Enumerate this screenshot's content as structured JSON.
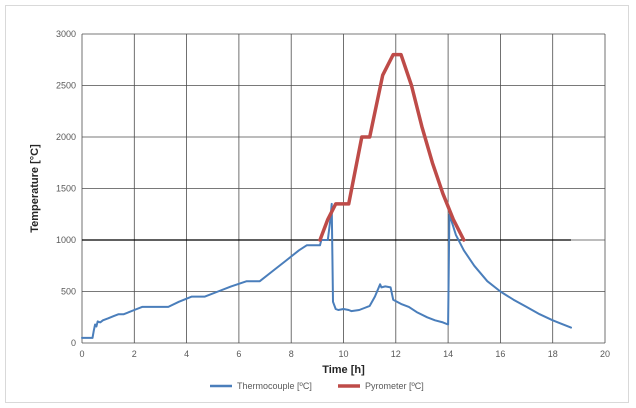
{
  "chart_data": {
    "type": "line",
    "title": "",
    "xlabel": "Time [h]",
    "ylabel": "Temperature  [°C]",
    "xlim": [
      0,
      20
    ],
    "ylim": [
      0,
      3000
    ],
    "xticks": [
      "0",
      "2",
      "4",
      "6",
      "8",
      "10",
      "12",
      "14",
      "16",
      "18",
      "20"
    ],
    "yticks": [
      "0",
      "500",
      "1000",
      "1500",
      "2000",
      "2500",
      "3000"
    ],
    "grid": true,
    "legend_position": "bottom",
    "reference_line": {
      "y": 1000,
      "x_range": [
        0,
        18.7
      ],
      "color": "#000000"
    },
    "series": [
      {
        "name": "Thermocouple [ºC]",
        "color": "#4a7ebb",
        "points": [
          [
            0,
            50
          ],
          [
            0.4,
            50
          ],
          [
            0.45,
            120
          ],
          [
            0.5,
            180
          ],
          [
            0.55,
            160
          ],
          [
            0.6,
            210
          ],
          [
            0.7,
            200
          ],
          [
            0.8,
            220
          ],
          [
            1.0,
            240
          ],
          [
            1.2,
            260
          ],
          [
            1.4,
            280
          ],
          [
            1.6,
            280
          ],
          [
            1.8,
            300
          ],
          [
            2.0,
            320
          ],
          [
            2.3,
            350
          ],
          [
            3.3,
            350
          ],
          [
            3.7,
            400
          ],
          [
            4.2,
            450
          ],
          [
            4.7,
            450
          ],
          [
            5.2,
            500
          ],
          [
            5.7,
            550
          ],
          [
            6.3,
            600
          ],
          [
            6.8,
            600
          ],
          [
            7.3,
            700
          ],
          [
            7.8,
            800
          ],
          [
            8.3,
            900
          ],
          [
            8.6,
            950
          ],
          [
            9.1,
            950
          ],
          [
            9.15,
            1000
          ],
          [
            9.4,
            1000
          ],
          [
            9.5,
            1200
          ],
          [
            9.55,
            1350
          ],
          [
            9.6,
            400
          ],
          [
            9.7,
            330
          ],
          [
            9.8,
            320
          ],
          [
            10.0,
            330
          ],
          [
            10.2,
            320
          ],
          [
            10.3,
            310
          ],
          [
            10.6,
            320
          ],
          [
            10.8,
            340
          ],
          [
            11.0,
            360
          ],
          [
            11.2,
            450
          ],
          [
            11.35,
            540
          ],
          [
            11.4,
            570
          ],
          [
            11.45,
            540
          ],
          [
            11.6,
            550
          ],
          [
            11.8,
            540
          ],
          [
            11.9,
            420
          ],
          [
            12.2,
            380
          ],
          [
            12.5,
            350
          ],
          [
            12.8,
            300
          ],
          [
            13.2,
            250
          ],
          [
            13.5,
            220
          ],
          [
            13.8,
            200
          ],
          [
            14.0,
            180
          ],
          [
            14.05,
            1250
          ],
          [
            14.3,
            1050
          ],
          [
            14.6,
            900
          ],
          [
            15.0,
            750
          ],
          [
            15.5,
            600
          ],
          [
            16.0,
            500
          ],
          [
            16.5,
            420
          ],
          [
            17.0,
            350
          ],
          [
            17.5,
            280
          ],
          [
            18.0,
            220
          ],
          [
            18.3,
            190
          ],
          [
            18.7,
            150
          ]
        ]
      },
      {
        "name": "Pyrometer [ºC]",
        "color": "#be4b48",
        "points": [
          [
            9.1,
            1000
          ],
          [
            9.4,
            1200
          ],
          [
            9.7,
            1350
          ],
          [
            10.2,
            1350
          ],
          [
            10.7,
            2000
          ],
          [
            11.0,
            2000
          ],
          [
            11.5,
            2600
          ],
          [
            11.9,
            2800
          ],
          [
            12.2,
            2800
          ],
          [
            12.6,
            2500
          ],
          [
            13.0,
            2100
          ],
          [
            13.4,
            1750
          ],
          [
            13.8,
            1450
          ],
          [
            14.2,
            1200
          ],
          [
            14.6,
            1000
          ]
        ]
      }
    ]
  }
}
